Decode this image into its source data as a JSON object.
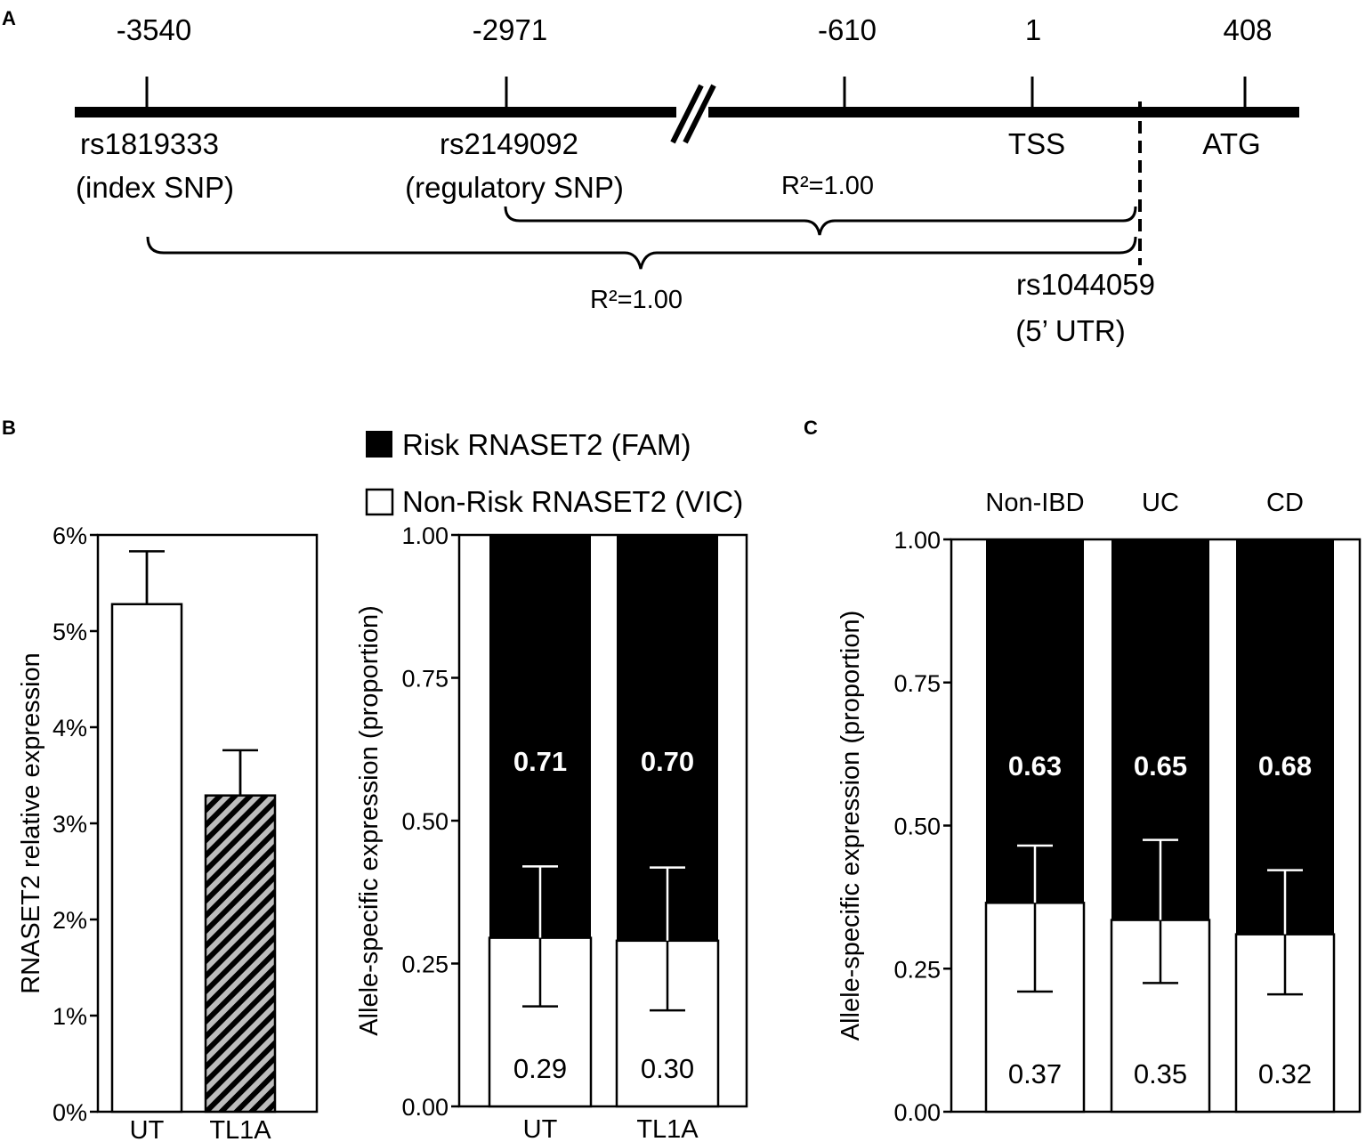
{
  "panels": {
    "a": "A",
    "b": "B",
    "c": "C"
  },
  "panel_a": {
    "positions": [
      "-3540",
      "-2971",
      "-610",
      "1",
      "408"
    ],
    "snp_index_name": "rs1819333",
    "snp_index_desc": "(index SNP)",
    "snp_reg_name": "rs2149092",
    "snp_reg_desc": "(regulatory SNP)",
    "tss": "TSS",
    "atg": "ATG",
    "r2_upper": "R²=1.00",
    "r2_lower": "R²=1.00",
    "utr_name": "rs1044059",
    "utr_desc": "(5’ UTR)"
  },
  "legend": {
    "risk": "Risk RNASET2 (FAM)",
    "nonrisk": "Non-Risk RNASET2 (VIC)"
  },
  "colors": {
    "black": "#000000",
    "white": "#ffffff",
    "hatch": "#bdbdbd"
  },
  "chart_data": [
    {
      "id": "B-left",
      "type": "bar",
      "ylabel": "RNASET2  relative expression",
      "ylim": [
        0,
        6
      ],
      "yticks": [
        0,
        1,
        2,
        3,
        4,
        5,
        6
      ],
      "ytick_labels": [
        "0%",
        "1%",
        "2%",
        "3%",
        "4%",
        "5%",
        "6%"
      ],
      "categories": [
        "UT",
        "TL1A"
      ],
      "values": [
        5.28,
        3.29
      ],
      "errors": [
        0.55,
        0.47
      ],
      "fills": [
        "solid-white",
        "diagonal-hatch"
      ]
    },
    {
      "id": "B-right",
      "type": "bar",
      "stacked": true,
      "ylabel": "Allele-specific expression (proportion)",
      "ylim": [
        0,
        1
      ],
      "yticks": [
        0,
        0.25,
        0.5,
        0.75,
        1.0
      ],
      "ytick_labels": [
        "0.00",
        "0.25",
        "0.50",
        "0.75",
        "1.00"
      ],
      "categories": [
        "UT",
        "TL1A"
      ],
      "series": [
        {
          "name": "Non-Risk RNASET2 (VIC)",
          "values": [
            0.29,
            0.3
          ],
          "labels": [
            "0.29",
            "0.30"
          ]
        },
        {
          "name": "Risk RNASET2 (FAM)",
          "values": [
            0.71,
            0.7
          ],
          "labels": [
            "0.71",
            "0.70"
          ]
        }
      ],
      "boundary": [
        0.295,
        0.29
      ],
      "err_low": [
        0.175,
        0.168
      ],
      "err_high": [
        0.42,
        0.418
      ]
    },
    {
      "id": "C",
      "type": "bar",
      "stacked": true,
      "ylabel": "Allele-specific expression (proportion)",
      "ylim": [
        0,
        1
      ],
      "yticks": [
        0,
        0.25,
        0.5,
        0.75,
        1.0
      ],
      "ytick_labels": [
        "0.00",
        "0.25",
        "0.50",
        "0.75",
        "1.00"
      ],
      "categories": [
        "Non-IBD",
        "UC",
        "CD"
      ],
      "series": [
        {
          "name": "Non-Risk RNASET2 (VIC)",
          "values": [
            0.37,
            0.35,
            0.32
          ],
          "labels": [
            "0.37",
            "0.35",
            "0.32"
          ]
        },
        {
          "name": "Risk RNASET2 (FAM)",
          "values": [
            0.63,
            0.65,
            0.68
          ],
          "labels": [
            "0.63",
            "0.65",
            "0.68"
          ]
        }
      ],
      "boundary": [
        0.365,
        0.335,
        0.31
      ],
      "err_low": [
        0.21,
        0.225,
        0.205
      ],
      "err_high": [
        0.465,
        0.475,
        0.422
      ]
    }
  ]
}
